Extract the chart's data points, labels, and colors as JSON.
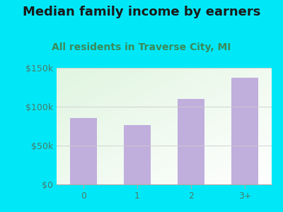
{
  "title": "Median family income by earners",
  "subtitle": "All residents in Traverse City, MI",
  "categories": [
    "0",
    "1",
    "2",
    "3+"
  ],
  "values": [
    85000,
    76000,
    110000,
    137000
  ],
  "bar_color": "#c0aedd",
  "background_outer": "#00e8f8",
  "title_color": "#1a1a1a",
  "subtitle_color": "#3a8a5a",
  "tick_label_color": "#4a7a6a",
  "ytick_labels": [
    "$0",
    "$50k",
    "$100k",
    "$150k"
  ],
  "ytick_values": [
    0,
    50000,
    100000,
    150000
  ],
  "ylim": [
    0,
    150000
  ],
  "title_fontsize": 13,
  "subtitle_fontsize": 10,
  "tick_fontsize": 9
}
